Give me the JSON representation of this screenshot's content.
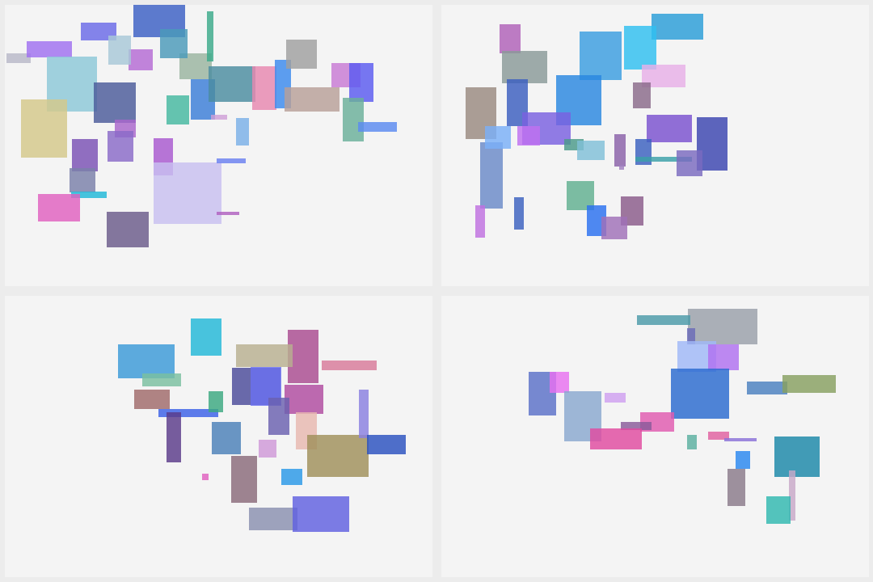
{
  "panels": [
    {
      "id": "top-left",
      "rect_colors": [
        "#3a5fc4",
        "#6a6ae8",
        "#b46ad4",
        "#a8c8d8",
        "#b8b8c8",
        "#a070f0",
        "#8cc8d8",
        "#4a5a9a",
        "#7a50b4",
        "#d4c88a",
        "#9ab4a0",
        "#3aaa8a",
        "#4a9aba",
        "#44b8a0",
        "#3a7ed8",
        "#7ab0e8",
        "#4a8ca0",
        "#e888b0",
        "#3a8aee",
        "#a0a0a0",
        "#c87ad4",
        "#5a5af0",
        "#b8a098",
        "#6ab09a",
        "#5a8af0",
        "#aa66cc",
        "#8a6ac8",
        "#7a80aa",
        "#a858d0",
        "#20b8d8",
        "#e060c0",
        "#6a5a8a",
        "#c8c0f0",
        "#6a80f0",
        "#b060c0",
        "#d0a0d8",
        "#e060b0"
      ]
    },
    {
      "id": "top-right",
      "rect_colors": [
        "#b060b8",
        "#8a9a98",
        "#2a9ed8",
        "#3a9ee0",
        "#30c0f0",
        "#e8b0e8",
        "#8a6a8a",
        "#3a5ec0",
        "#2a88e0",
        "#9a8a80",
        "#7a60e0",
        "#c070f0",
        "#3a44b0",
        "#7a50d0",
        "#6a8ac8",
        "#7ab0f8",
        "#4a9a8a",
        "#80c0d8",
        "#8a60a8",
        "#3a60c0",
        "#3aa0a8",
        "#7a6ac0",
        "#60b090",
        "#2a70f0",
        "#8a5a8a",
        "#a070b8",
        "#c070e0",
        "#3a60c0",
        "#a080c0"
      ]
    },
    {
      "id": "bottom-left",
      "rect_colors": [
        "#22b8d8",
        "#3a9ad8",
        "#aa4a90",
        "#b8b090",
        "#d87a9a",
        "#7ac0a0",
        "#a06a6a",
        "#4a4a9a",
        "#6a70f0",
        "#b04aa0",
        "#3a60e8",
        "#3aa880",
        "#5a3a8a",
        "#4a80b8",
        "#6a60b0",
        "#e8b8b0",
        "#a0905a",
        "#d098d8",
        "#8a6a7a",
        "#2a98e8",
        "#8a80e0",
        "#8a90b0",
        "#e060c0",
        "#6060e0",
        "#2a50c0"
      ]
    },
    {
      "id": "bottom-right",
      "rect_colors": [
        "#9aa0aa",
        "#4a9aa8",
        "#6a6ab8",
        "#a0b8f8",
        "#b070f0",
        "#5a70c8",
        "#e870f0",
        "#8aa8d0",
        "#d0a0f0",
        "#2a6ad0",
        "#e05ab0",
        "#8a5a9a",
        "#e04aa0",
        "#5ab0a0",
        "#e060a0",
        "#8a70d8",
        "#2a88f0",
        "#1a88a8",
        "#8a7a8a",
        "#c8a8c8",
        "#30b8b0",
        "#4a80c0",
        "#88a060"
      ]
    }
  ]
}
